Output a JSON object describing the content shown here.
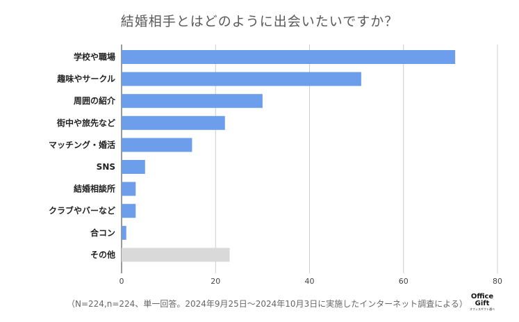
{
  "chart_data": {
    "type": "bar",
    "orientation": "horizontal",
    "title": "結婚相手とはどのように出会いたいですか？",
    "categories": [
      "学校や職場",
      "趣味やサークル",
      "周囲の紹介",
      "街中や旅先など",
      "マッチング・婚活",
      "SNS",
      "結婚相談所",
      "クラブやバーなど",
      "合コン",
      "その他"
    ],
    "values": [
      71,
      51,
      30,
      22,
      15,
      5,
      3,
      3,
      1,
      23
    ],
    "xlim": [
      0,
      80
    ],
    "xticks": [
      0,
      20,
      40,
      60,
      80
    ],
    "grid": true,
    "bar_color": "#6d9eeb",
    "highlight_color": "#d9d9d9"
  },
  "footnote": "（N=224,n=224、単一回答。2024年9月25日～2024年10月3日に実施したインターネット調査による）",
  "logo": {
    "line1": "Office",
    "line2": "Gift",
    "tagline": "オフィスギフト通べ"
  }
}
